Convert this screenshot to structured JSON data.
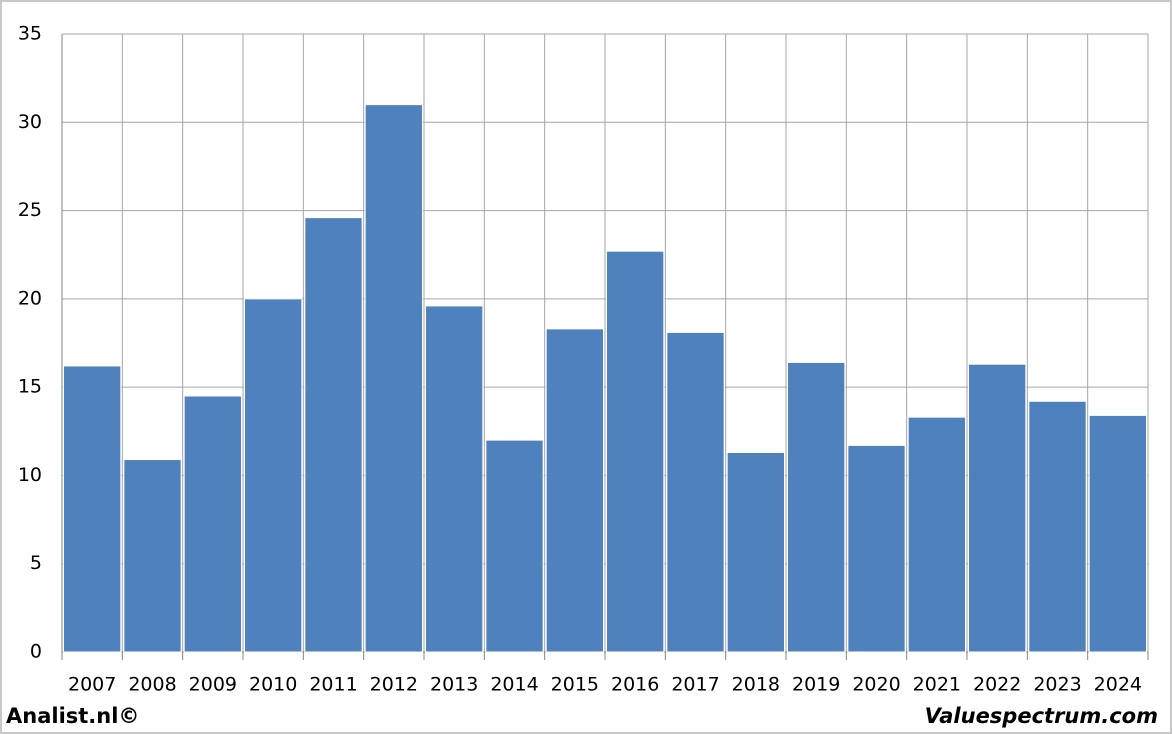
{
  "chart_data": {
    "type": "bar",
    "categories": [
      "2007",
      "2008",
      "2009",
      "2010",
      "2011",
      "2012",
      "2013",
      "2014",
      "2015",
      "2016",
      "2017",
      "2018",
      "2019",
      "2020",
      "2021",
      "2022",
      "2023",
      "2024"
    ],
    "values": [
      16.2,
      10.9,
      14.5,
      20.0,
      24.6,
      31.0,
      19.6,
      12.0,
      18.3,
      22.7,
      18.1,
      11.3,
      16.4,
      11.7,
      13.3,
      16.3,
      14.2,
      13.4
    ],
    "color": "#4f81bd",
    "ylim": [
      0,
      35
    ],
    "yticks": [
      0,
      5,
      10,
      15,
      20,
      25,
      30,
      35
    ],
    "grid": true,
    "footer_left": "Analist.nl©",
    "footer_right": "Valuespectrum.com"
  }
}
